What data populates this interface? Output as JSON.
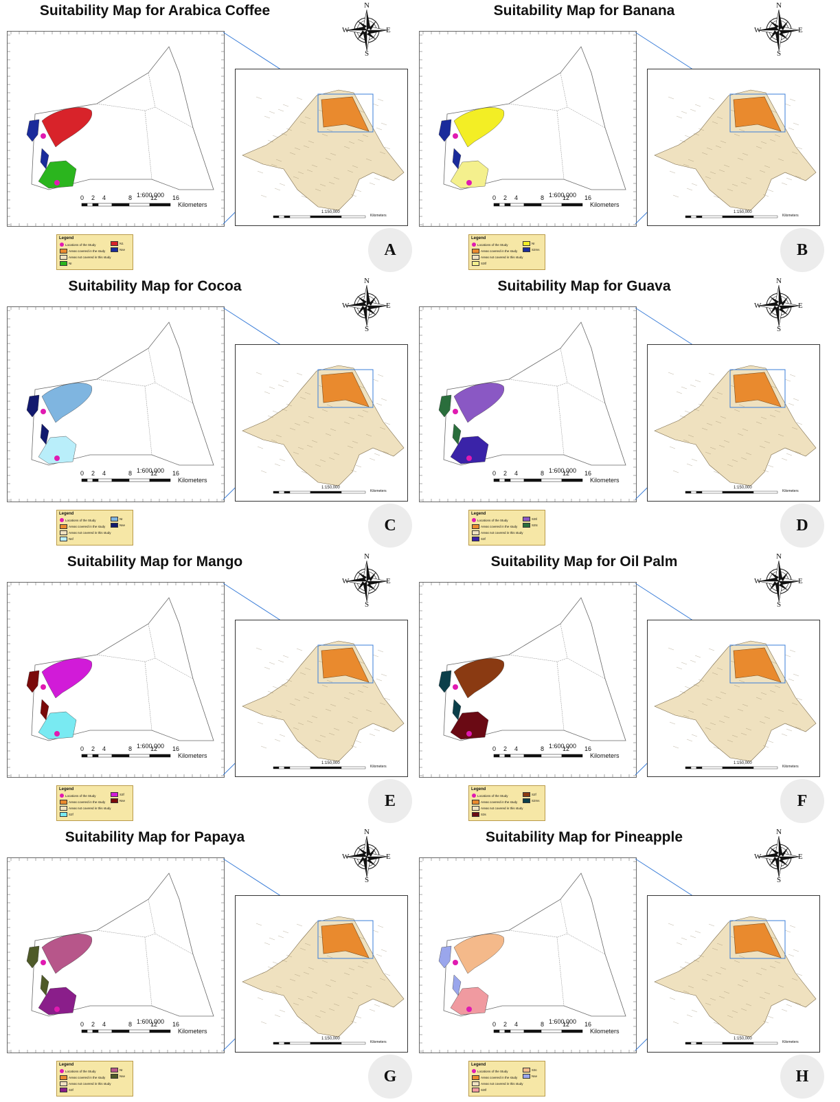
{
  "compass": {
    "n": "N",
    "s": "S",
    "e": "E",
    "w": "W"
  },
  "scale": {
    "main_ratio": "1:600,000",
    "inset_ratio": "1:150,000",
    "ticks": [
      "0",
      "2",
      "4",
      "8",
      "12",
      "16"
    ],
    "unit": "Kilometers"
  },
  "legend_common": {
    "title": "Legend",
    "locations": "Locations of the Study",
    "covered": "Areas covered in the study",
    "not_covered": "Areas not covered in this study"
  },
  "colors": {
    "locations": "#e01ab1",
    "covered": "#e98a2e",
    "not_covered": "#efe1bf",
    "inset_region": "#efe1bf",
    "zoom_line": "#3a7dd8"
  },
  "panels": [
    {
      "letter": "A",
      "title": "Suitability Map for Arabica Coffee",
      "classes": [
        {
          "label": "N1",
          "color": "#d8232a"
        },
        {
          "label": "Nse",
          "color": "#1a2b9b"
        },
        {
          "label": "NI",
          "color": "#2bb51e"
        }
      ],
      "fill_top": "#d8232a",
      "fill_bottom": "#2bb51e",
      "fill_west": "#1a2b9b"
    },
    {
      "letter": "B",
      "title": "Suitability Map for Banana",
      "classes": [
        {
          "label": "NI",
          "color": "#f3ee25"
        },
        {
          "label": "S2ms",
          "color": "#1a2b9b"
        },
        {
          "label": "S3tf",
          "color": "#f4f08d"
        }
      ],
      "fill_top": "#f3ee25",
      "fill_bottom": "#f4f08d",
      "fill_west": "#1a2b9b"
    },
    {
      "letter": "C",
      "title": "Suitability Map for Cocoa",
      "classes": [
        {
          "label": "NI",
          "color": "#7fb5e0"
        },
        {
          "label": "Nse",
          "color": "#12196e"
        },
        {
          "label": "Nsf",
          "color": "#b9eefa"
        }
      ],
      "fill_top": "#7fb5e0",
      "fill_bottom": "#b9eefa",
      "fill_west": "#12196e"
    },
    {
      "letter": "D",
      "title": "Suitability Map for Guava",
      "classes": [
        {
          "label": "S3tl",
          "color": "#8a58c4"
        },
        {
          "label": "S2tc",
          "color": "#2a6e3c"
        },
        {
          "label": "S3f",
          "color": "#3a23a8"
        }
      ],
      "fill_top": "#8a58c4",
      "fill_bottom": "#3a23a8",
      "fill_west": "#2a6e3c"
    },
    {
      "letter": "E",
      "title": "Suitability Map for Mango",
      "classes": [
        {
          "label": "S3f",
          "color": "#d11bd8"
        },
        {
          "label": "Nse",
          "color": "#7a0a0a"
        },
        {
          "label": "S2f",
          "color": "#79eaf2"
        }
      ],
      "fill_top": "#d11bd8",
      "fill_bottom": "#79eaf2",
      "fill_west": "#7a0a0a"
    },
    {
      "letter": "F",
      "title": "Suitability Map for Oil Palm",
      "classes": [
        {
          "label": "S2f",
          "color": "#8a3a12"
        },
        {
          "label": "S2ms",
          "color": "#0c3f4a"
        },
        {
          "label": "S3s",
          "color": "#6a0a14"
        }
      ],
      "fill_top": "#8a3a12",
      "fill_bottom": "#6a0a14",
      "fill_west": "#0c3f4a"
    },
    {
      "letter": "G",
      "title": "Suitability Map for Papaya",
      "classes": [
        {
          "label": "NI",
          "color": "#b7568a"
        },
        {
          "label": "Nse",
          "color": "#4e5a28"
        },
        {
          "label": "S3f",
          "color": "#8a1e8a"
        }
      ],
      "fill_top": "#b7568a",
      "fill_bottom": "#8a1e8a",
      "fill_west": "#4e5a28"
    },
    {
      "letter": "H",
      "title": "Suitability Map for Pineapple",
      "classes": [
        {
          "label": "S3c",
          "color": "#f4b98a"
        },
        {
          "label": "Nse",
          "color": "#9aa6ec"
        },
        {
          "label": "S3tf",
          "color": "#f09aa0"
        }
      ],
      "fill_top": "#f4b98a",
      "fill_bottom": "#f09aa0",
      "fill_west": "#9aa6ec"
    }
  ]
}
